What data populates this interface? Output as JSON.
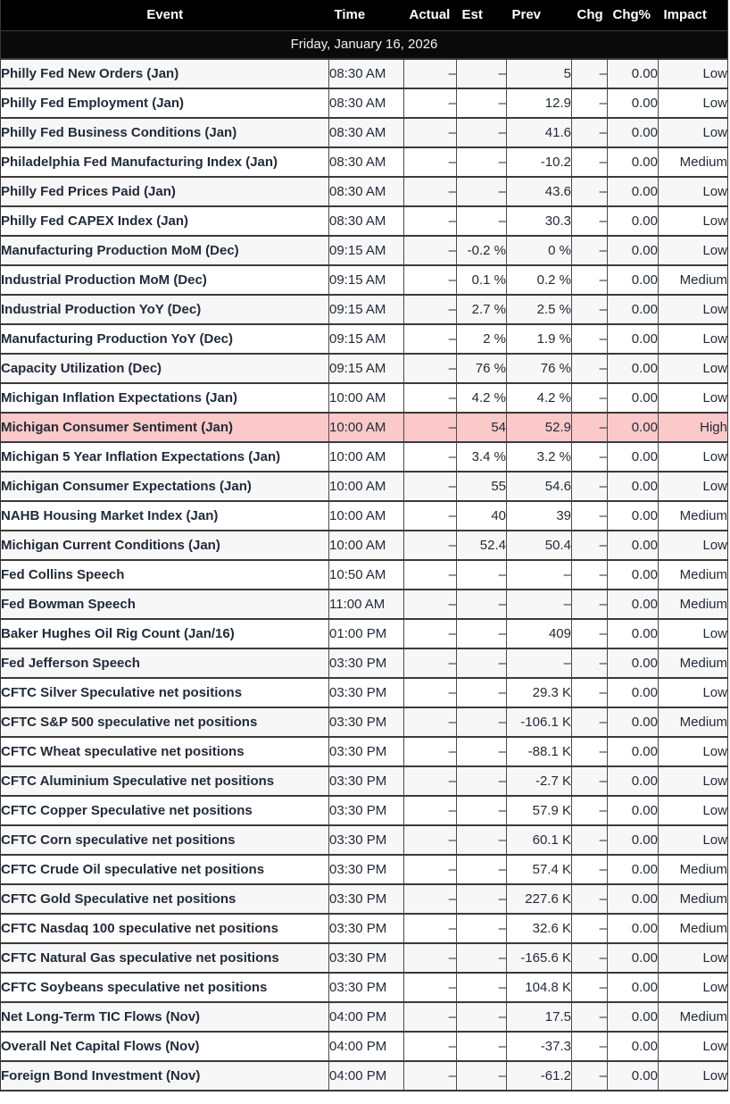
{
  "table": {
    "columns": [
      "Event",
      "Time",
      "Actual",
      "Est",
      "Prev",
      "Chg",
      "Chg%",
      "Impact"
    ],
    "date_header": "Friday, January 16, 2026",
    "row_fields": [
      "event",
      "time",
      "actual",
      "est",
      "prev",
      "chg",
      "chg_pct",
      "impact"
    ],
    "rows": [
      {
        "event": "Philly Fed New Orders (Jan)",
        "time": "08:30 AM",
        "actual": "–",
        "est": "–",
        "prev": "5",
        "chg": "–",
        "chg_pct": "0.00",
        "impact": "Low",
        "highlight": false
      },
      {
        "event": "Philly Fed Employment (Jan)",
        "time": "08:30 AM",
        "actual": "–",
        "est": "–",
        "prev": "12.9",
        "chg": "–",
        "chg_pct": "0.00",
        "impact": "Low",
        "highlight": false
      },
      {
        "event": "Philly Fed Business Conditions (Jan)",
        "time": "08:30 AM",
        "actual": "–",
        "est": "–",
        "prev": "41.6",
        "chg": "–",
        "chg_pct": "0.00",
        "impact": "Low",
        "highlight": false
      },
      {
        "event": "Philadelphia Fed Manufacturing Index (Jan)",
        "time": "08:30 AM",
        "actual": "–",
        "est": "–",
        "prev": "-10.2",
        "chg": "–",
        "chg_pct": "0.00",
        "impact": "Medium",
        "highlight": false
      },
      {
        "event": "Philly Fed Prices Paid (Jan)",
        "time": "08:30 AM",
        "actual": "–",
        "est": "–",
        "prev": "43.6",
        "chg": "–",
        "chg_pct": "0.00",
        "impact": "Low",
        "highlight": false
      },
      {
        "event": "Philly Fed CAPEX Index (Jan)",
        "time": "08:30 AM",
        "actual": "–",
        "est": "–",
        "prev": "30.3",
        "chg": "–",
        "chg_pct": "0.00",
        "impact": "Low",
        "highlight": false
      },
      {
        "event": "Manufacturing Production MoM (Dec)",
        "time": "09:15 AM",
        "actual": "–",
        "est": "-0.2 %",
        "prev": "0 %",
        "chg": "–",
        "chg_pct": "0.00",
        "impact": "Low",
        "highlight": false
      },
      {
        "event": "Industrial Production MoM (Dec)",
        "time": "09:15 AM",
        "actual": "–",
        "est": "0.1 %",
        "prev": "0.2 %",
        "chg": "–",
        "chg_pct": "0.00",
        "impact": "Medium",
        "highlight": false
      },
      {
        "event": "Industrial Production YoY (Dec)",
        "time": "09:15 AM",
        "actual": "–",
        "est": "2.7 %",
        "prev": "2.5 %",
        "chg": "–",
        "chg_pct": "0.00",
        "impact": "Low",
        "highlight": false
      },
      {
        "event": "Manufacturing Production YoY (Dec)",
        "time": "09:15 AM",
        "actual": "–",
        "est": "2 %",
        "prev": "1.9 %",
        "chg": "–",
        "chg_pct": "0.00",
        "impact": "Low",
        "highlight": false
      },
      {
        "event": "Capacity Utilization (Dec)",
        "time": "09:15 AM",
        "actual": "–",
        "est": "76 %",
        "prev": "76 %",
        "chg": "–",
        "chg_pct": "0.00",
        "impact": "Low",
        "highlight": false
      },
      {
        "event": "Michigan Inflation Expectations (Jan)",
        "time": "10:00 AM",
        "actual": "–",
        "est": "4.2 %",
        "prev": "4.2 %",
        "chg": "–",
        "chg_pct": "0.00",
        "impact": "Low",
        "highlight": false
      },
      {
        "event": "Michigan Consumer Sentiment (Jan)",
        "time": "10:00 AM",
        "actual": "–",
        "est": "54",
        "prev": "52.9",
        "chg": "–",
        "chg_pct": "0.00",
        "impact": "High",
        "highlight": true
      },
      {
        "event": "Michigan 5 Year Inflation Expectations (Jan)",
        "time": "10:00 AM",
        "actual": "–",
        "est": "3.4 %",
        "prev": "3.2 %",
        "chg": "–",
        "chg_pct": "0.00",
        "impact": "Low",
        "highlight": false
      },
      {
        "event": "Michigan Consumer Expectations (Jan)",
        "time": "10:00 AM",
        "actual": "–",
        "est": "55",
        "prev": "54.6",
        "chg": "–",
        "chg_pct": "0.00",
        "impact": "Low",
        "highlight": false
      },
      {
        "event": "NAHB Housing Market Index (Jan)",
        "time": "10:00 AM",
        "actual": "–",
        "est": "40",
        "prev": "39",
        "chg": "–",
        "chg_pct": "0.00",
        "impact": "Medium",
        "highlight": false
      },
      {
        "event": "Michigan Current Conditions (Jan)",
        "time": "10:00 AM",
        "actual": "–",
        "est": "52.4",
        "prev": "50.4",
        "chg": "–",
        "chg_pct": "0.00",
        "impact": "Low",
        "highlight": false
      },
      {
        "event": "Fed Collins Speech",
        "time": "10:50 AM",
        "actual": "–",
        "est": "–",
        "prev": "–",
        "chg": "–",
        "chg_pct": "0.00",
        "impact": "Medium",
        "highlight": false
      },
      {
        "event": "Fed Bowman Speech",
        "time": "11:00 AM",
        "actual": "–",
        "est": "–",
        "prev": "–",
        "chg": "–",
        "chg_pct": "0.00",
        "impact": "Medium",
        "highlight": false
      },
      {
        "event": "Baker Hughes Oil Rig Count (Jan/16)",
        "time": "01:00 PM",
        "actual": "–",
        "est": "–",
        "prev": "409",
        "chg": "–",
        "chg_pct": "0.00",
        "impact": "Low",
        "highlight": false
      },
      {
        "event": "Fed Jefferson Speech",
        "time": "03:30 PM",
        "actual": "–",
        "est": "–",
        "prev": "–",
        "chg": "–",
        "chg_pct": "0.00",
        "impact": "Medium",
        "highlight": false
      },
      {
        "event": "CFTC Silver Speculative net positions",
        "time": "03:30 PM",
        "actual": "–",
        "est": "–",
        "prev": "29.3 K",
        "chg": "–",
        "chg_pct": "0.00",
        "impact": "Low",
        "highlight": false
      },
      {
        "event": "CFTC S&P 500 speculative net positions",
        "time": "03:30 PM",
        "actual": "–",
        "est": "–",
        "prev": "-106.1 K",
        "chg": "–",
        "chg_pct": "0.00",
        "impact": "Medium",
        "highlight": false
      },
      {
        "event": "CFTC Wheat speculative net positions",
        "time": "03:30 PM",
        "actual": "–",
        "est": "–",
        "prev": "-88.1 K",
        "chg": "–",
        "chg_pct": "0.00",
        "impact": "Low",
        "highlight": false
      },
      {
        "event": "CFTC Aluminium Speculative net positions",
        "time": "03:30 PM",
        "actual": "–",
        "est": "–",
        "prev": "-2.7 K",
        "chg": "–",
        "chg_pct": "0.00",
        "impact": "Low",
        "highlight": false
      },
      {
        "event": "CFTC Copper Speculative net positions",
        "time": "03:30 PM",
        "actual": "–",
        "est": "–",
        "prev": "57.9 K",
        "chg": "–",
        "chg_pct": "0.00",
        "impact": "Low",
        "highlight": false
      },
      {
        "event": "CFTC Corn speculative net positions",
        "time": "03:30 PM",
        "actual": "–",
        "est": "–",
        "prev": "60.1 K",
        "chg": "–",
        "chg_pct": "0.00",
        "impact": "Low",
        "highlight": false
      },
      {
        "event": "CFTC Crude Oil speculative net positions",
        "time": "03:30 PM",
        "actual": "–",
        "est": "–",
        "prev": "57.4 K",
        "chg": "–",
        "chg_pct": "0.00",
        "impact": "Medium",
        "highlight": false
      },
      {
        "event": "CFTC Gold Speculative net positions",
        "time": "03:30 PM",
        "actual": "–",
        "est": "–",
        "prev": "227.6 K",
        "chg": "–",
        "chg_pct": "0.00",
        "impact": "Medium",
        "highlight": false
      },
      {
        "event": "CFTC Nasdaq 100 speculative net positions",
        "time": "03:30 PM",
        "actual": "–",
        "est": "–",
        "prev": "32.6 K",
        "chg": "–",
        "chg_pct": "0.00",
        "impact": "Medium",
        "highlight": false
      },
      {
        "event": "CFTC Natural Gas speculative net positions",
        "time": "03:30 PM",
        "actual": "–",
        "est": "–",
        "prev": "-165.6 K",
        "chg": "–",
        "chg_pct": "0.00",
        "impact": "Low",
        "highlight": false
      },
      {
        "event": "CFTC Soybeans speculative net positions",
        "time": "03:30 PM",
        "actual": "–",
        "est": "–",
        "prev": "104.8 K",
        "chg": "–",
        "chg_pct": "0.00",
        "impact": "Low",
        "highlight": false
      },
      {
        "event": "Net Long-Term TIC Flows (Nov)",
        "time": "04:00 PM",
        "actual": "–",
        "est": "–",
        "prev": "17.5",
        "chg": "–",
        "chg_pct": "0.00",
        "impact": "Medium",
        "highlight": false
      },
      {
        "event": "Overall Net Capital Flows (Nov)",
        "time": "04:00 PM",
        "actual": "–",
        "est": "–",
        "prev": "-37.3",
        "chg": "–",
        "chg_pct": "0.00",
        "impact": "Low",
        "highlight": false
      },
      {
        "event": "Foreign Bond Investment (Nov)",
        "time": "04:00 PM",
        "actual": "–",
        "est": "–",
        "prev": "-61.2",
        "chg": "–",
        "chg_pct": "0.00",
        "impact": "Low",
        "highlight": false
      }
    ]
  },
  "colors": {
    "header_bg": "#000000",
    "header_text": "#ffffff",
    "highlight_row_bg": "#fbc9c9",
    "stripe_row_bg": "#f7f7f8",
    "row_border": "#3a3a3a",
    "body_text": "#222b38"
  }
}
